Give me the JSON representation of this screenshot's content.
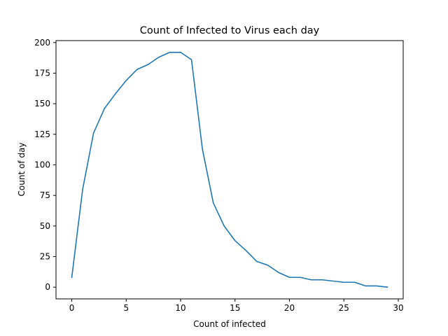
{
  "chart_data": {
    "type": "line",
    "title": "Count of Infected to Virus each day",
    "xlabel": "Count of infected",
    "ylabel": "Count of day",
    "xlim": [
      -1.45,
      30.45
    ],
    "ylim": [
      -9.6,
      201.6
    ],
    "xticks": [
      0,
      5,
      10,
      15,
      20,
      25,
      30
    ],
    "yticks": [
      0,
      25,
      50,
      75,
      100,
      125,
      150,
      175,
      200
    ],
    "grid": false,
    "series": [
      {
        "color": "#1f77b4",
        "x": [
          0,
          1,
          2,
          3,
          4,
          5,
          6,
          7,
          8,
          9,
          10,
          11,
          12,
          13,
          14,
          15,
          16,
          17,
          18,
          19,
          20,
          21,
          22,
          23,
          24,
          25,
          26,
          27,
          28,
          29
        ],
        "y": [
          8,
          80,
          126,
          146,
          158,
          169,
          178,
          182,
          188,
          192,
          192,
          186,
          113,
          69,
          50,
          38,
          30,
          21,
          18,
          12,
          8,
          8,
          6,
          6,
          5,
          4,
          4,
          1,
          1,
          0
        ]
      }
    ]
  }
}
